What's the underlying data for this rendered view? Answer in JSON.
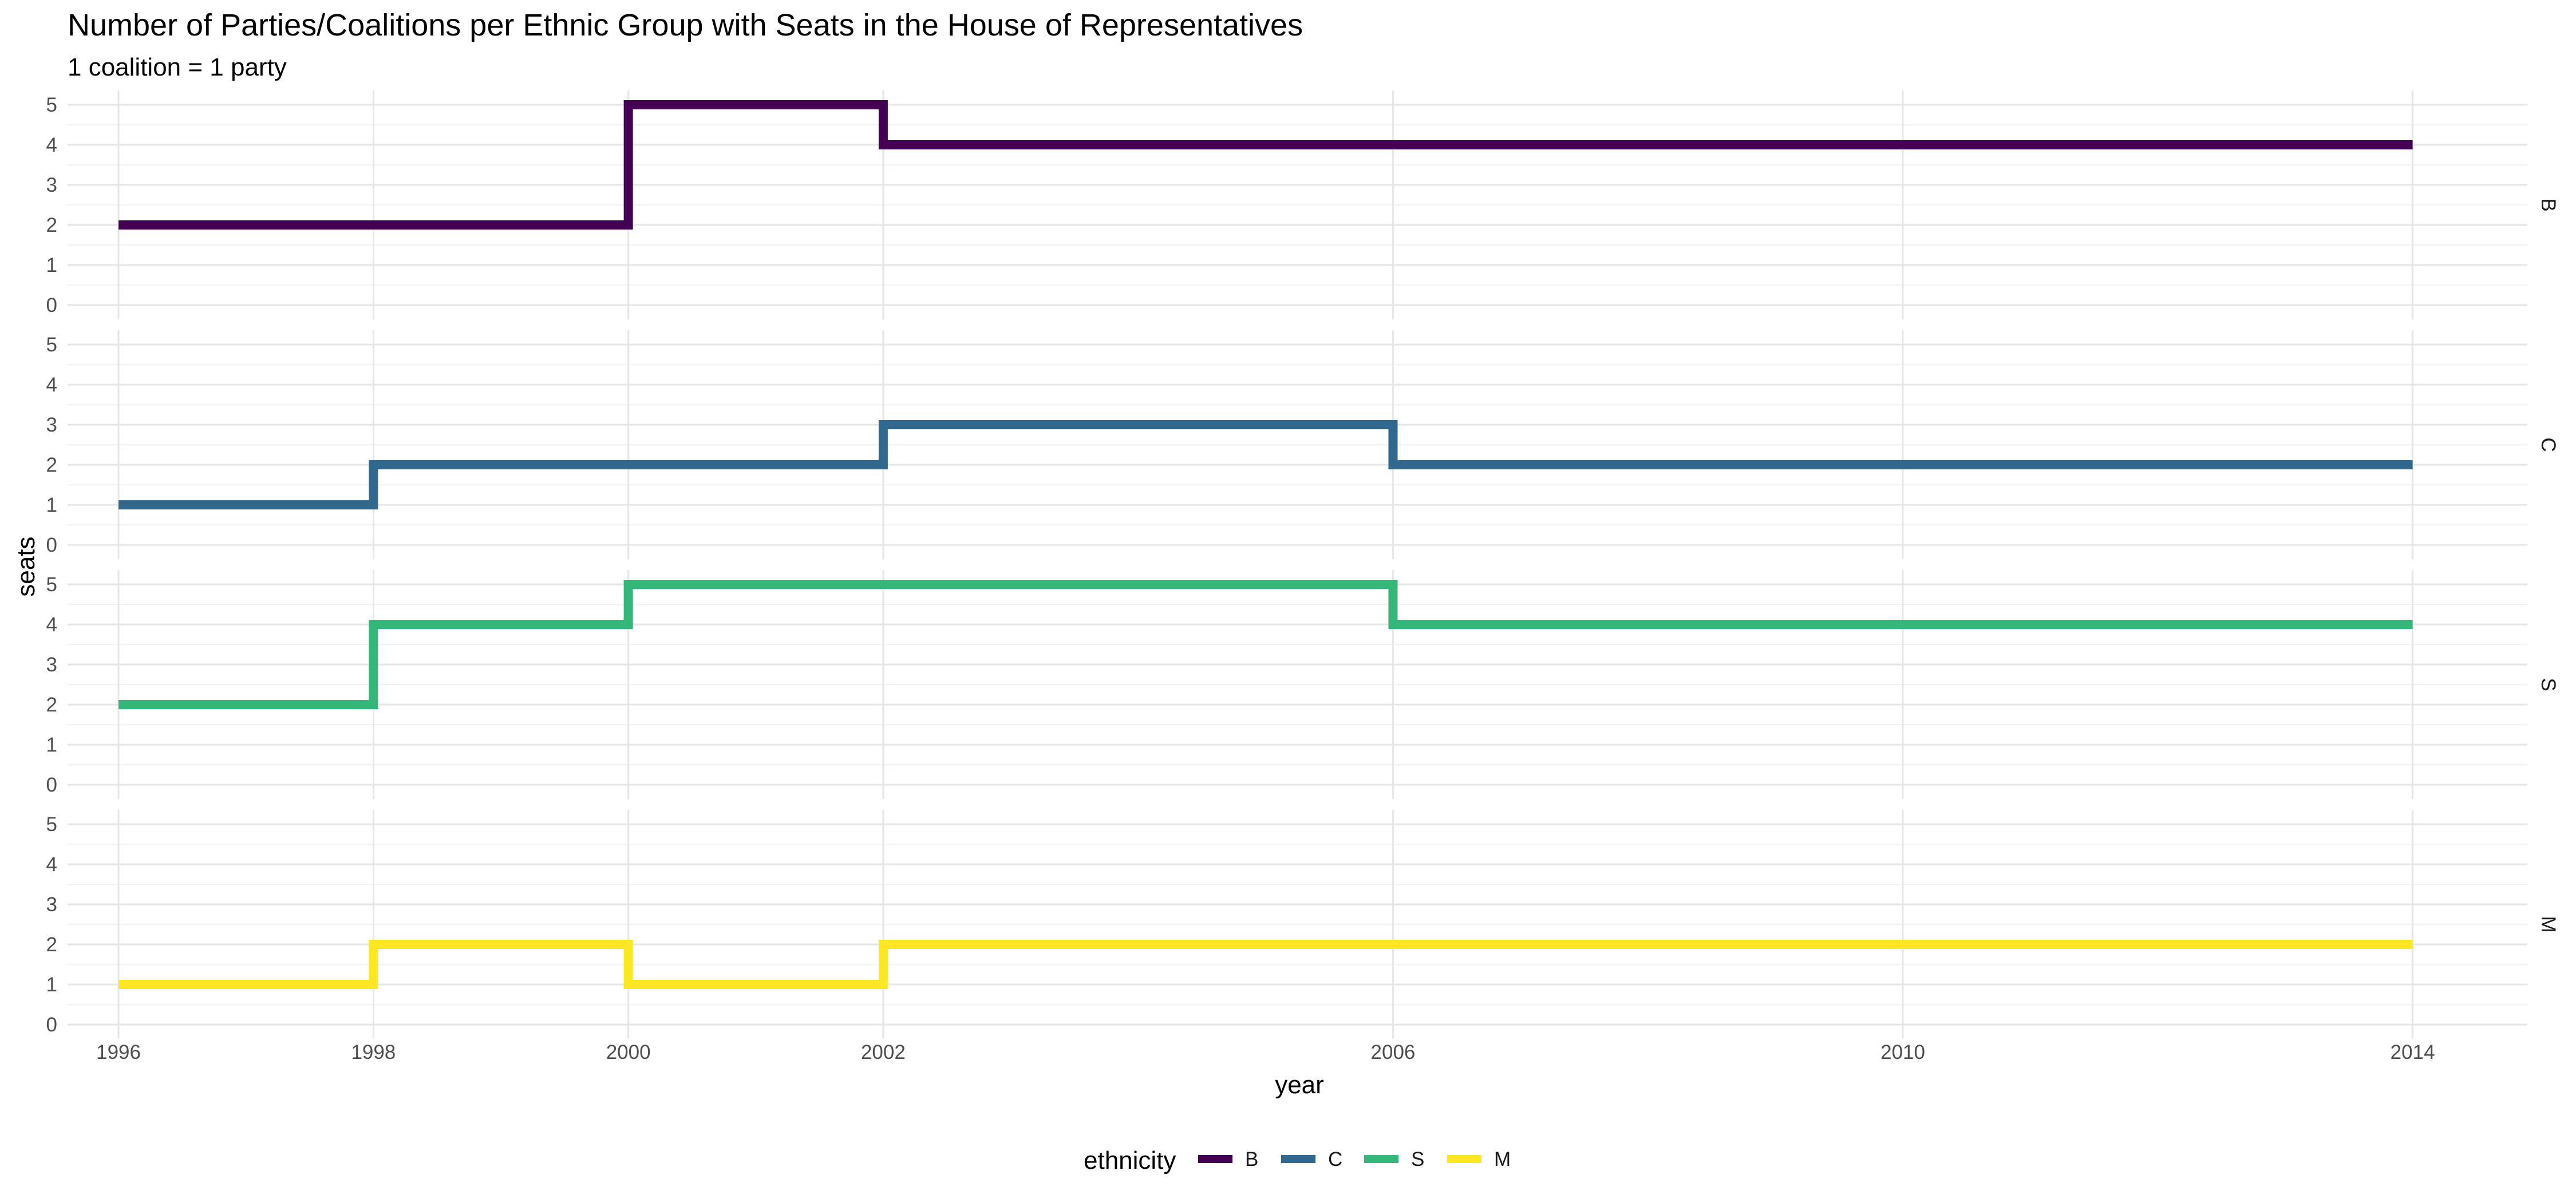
{
  "chart_data": {
    "type": "line",
    "step": true,
    "title": "Number of Parties/Coalitions per Ethnic Group with Seats in the House of Representatives",
    "subtitle": "1 coalition = 1 party",
    "xlabel": "year",
    "ylabel": "seats",
    "x_ticks": [
      1996,
      1998,
      2000,
      2002,
      2006,
      2010,
      2014
    ],
    "x_tick_labels": [
      "1996",
      "1998",
      "2000",
      "2002",
      "2006",
      "2010",
      "2014"
    ],
    "xlim": [
      1995.6,
      2014.9
    ],
    "ylim": [
      0,
      5
    ],
    "y_ticks": [
      0,
      1,
      2,
      3,
      4,
      5
    ],
    "y_tick_labels": [
      "0",
      "1",
      "2",
      "3",
      "4",
      "5"
    ],
    "grid": true,
    "facets": "rows by ethnicity",
    "legend": {
      "title": "ethnicity",
      "position": "bottom"
    },
    "x": [
      1996,
      1998,
      2000,
      2002,
      2006,
      2014
    ],
    "series": [
      {
        "name": "B",
        "color": "#440154",
        "values": [
          2,
          2,
          5,
          4,
          4,
          4
        ]
      },
      {
        "name": "C",
        "color": "#31688E",
        "values": [
          1,
          2,
          2,
          3,
          2,
          2
        ]
      },
      {
        "name": "S",
        "color": "#35B779",
        "values": [
          2,
          4,
          5,
          5,
          4,
          4
        ]
      },
      {
        "name": "M",
        "color": "#FDE725",
        "values": [
          1,
          2,
          1,
          2,
          2,
          2
        ]
      }
    ]
  }
}
